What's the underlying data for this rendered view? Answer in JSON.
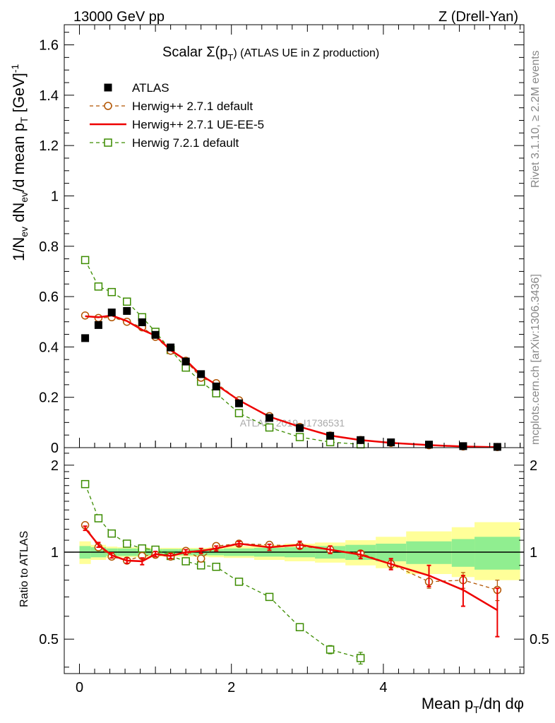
{
  "header": {
    "left": "13000 GeV pp",
    "right": "Z (Drell-Yan)"
  },
  "side": {
    "rivet": "Rivet 3.1.10, ≥ 2.2M events",
    "mcplots": "mcplots.cern.ch [arXiv:1306.3436]"
  },
  "watermark": "ATLAS_2019_I1736531",
  "colors": {
    "data": "#000000",
    "herwigpp_default": "#b25400",
    "herwigpp_ueee5": "#ee0000",
    "herwig7": "#3c8c00",
    "band_inner": "#90ee90",
    "band_outer": "#ffff99"
  },
  "chart_data": [
    {
      "type": "scatter",
      "panel": "main",
      "title": "Scalar Σ(p_T) (ATLAS UE in Z production)",
      "title_parts": {
        "main": "Scalar Σ(p",
        "sub": "T",
        "suffix": ") (ATLAS UE in Z production)"
      },
      "xlabel": "Mean p_T/dη dφ",
      "xlabel_parts": {
        "pre": "Mean p",
        "sub": "T",
        "post": "/dη dφ"
      },
      "ylabel": "1/N_ev dN_ev/d mean p_T [GeV]^-1",
      "ylabel_parts": {
        "a": "1/N",
        "a_sub": "ev",
        "b": " dN",
        "b_sub": "ev",
        "c": "/d mean p",
        "c_sub": "T",
        "d": " [GeV]",
        "d_sup": "-1"
      },
      "xlim": [
        -0.2,
        5.85
      ],
      "ylim": [
        0,
        1.68
      ],
      "yticks": [
        0,
        0.2,
        0.4,
        0.6,
        0.8,
        1,
        1.2,
        1.4,
        1.6
      ],
      "ytick_labels": [
        "0",
        "0.2",
        "0.4",
        "0.6",
        "0.8",
        "1",
        "1.2",
        "1.4",
        "1.6"
      ],
      "legend": {
        "position": "top-left"
      },
      "series": [
        {
          "name": "ATLAS",
          "style": "data",
          "x": [
            0.075,
            0.25,
            0.425,
            0.625,
            0.825,
            1.0,
            1.2,
            1.4,
            1.6,
            1.8,
            2.1,
            2.5,
            2.9,
            3.3,
            3.7,
            4.1,
            4.6,
            5.05,
            5.5
          ],
          "values": [
            0.435,
            0.487,
            0.537,
            0.543,
            0.498,
            0.448,
            0.398,
            0.342,
            0.292,
            0.243,
            0.176,
            0.118,
            0.078,
            0.047,
            0.03,
            0.021,
            0.012,
            0.006,
            0.003
          ]
        },
        {
          "name": "Herwig++ 2.7.1 default",
          "style": "open-circle-dashed",
          "x": [
            0.075,
            0.25,
            0.425,
            0.625,
            0.825,
            1.0,
            1.2,
            1.4,
            1.6,
            1.8,
            2.1,
            2.5,
            2.9,
            3.3,
            3.7,
            4.1,
            4.6,
            5.05,
            5.5
          ],
          "values": [
            0.525,
            0.515,
            0.518,
            0.5,
            0.478,
            0.44,
            0.385,
            0.345,
            0.278,
            0.256,
            0.188,
            0.125,
            0.082,
            0.048,
            0.03,
            0.019,
            0.0095,
            0.0049,
            0.0023
          ]
        },
        {
          "name": "Herwig++ 2.7.1 UE-EE-5",
          "style": "solid-line",
          "x": [
            0.075,
            0.25,
            0.425,
            0.625,
            0.825,
            1.0,
            1.2,
            1.4,
            1.6,
            1.8,
            2.1,
            2.5,
            2.9,
            3.3,
            3.7,
            4.1,
            4.6,
            5.05,
            5.5
          ],
          "values": [
            0.522,
            0.518,
            0.525,
            0.503,
            0.468,
            0.445,
            0.387,
            0.348,
            0.288,
            0.25,
            0.188,
            0.123,
            0.083,
            0.048,
            0.03,
            0.019,
            0.01,
            0.0045,
            0.0019
          ]
        },
        {
          "name": "Herwig 7.2.1 default",
          "style": "open-square-dashed",
          "x": [
            0.075,
            0.25,
            0.425,
            0.625,
            0.825,
            1.0,
            1.2,
            1.4,
            1.6,
            1.8,
            2.1,
            2.5,
            2.9,
            3.3,
            3.7
          ],
          "values": [
            0.745,
            0.64,
            0.618,
            0.58,
            0.518,
            0.46,
            0.388,
            0.318,
            0.262,
            0.216,
            0.137,
            0.08,
            0.042,
            0.022,
            0.013
          ]
        }
      ]
    },
    {
      "type": "scatter",
      "panel": "ratio",
      "ylabel": "Ratio to ATLAS",
      "xlabel": "Mean p_T/dη dφ",
      "xlim": [
        -0.2,
        5.85
      ],
      "ylim": [
        0.38,
        2.3
      ],
      "yticks": [
        0.5,
        1,
        2
      ],
      "ytick_labels": [
        "0.5",
        "1",
        "2"
      ],
      "xticks": [
        0,
        2,
        4
      ],
      "xtick_labels": [
        "0",
        "2",
        "4"
      ],
      "band": {
        "edges": [
          0.0,
          0.15,
          0.35,
          0.5,
          0.75,
          0.9,
          1.1,
          1.3,
          1.5,
          1.7,
          1.9,
          2.3,
          2.7,
          3.1,
          3.5,
          3.9,
          4.3,
          4.9,
          5.2,
          5.8
        ],
        "inner_low": [
          0.95,
          0.96,
          0.97,
          0.97,
          0.97,
          0.975,
          0.975,
          0.975,
          0.975,
          0.975,
          0.97,
          0.965,
          0.96,
          0.95,
          0.94,
          0.93,
          0.91,
          0.89,
          0.87
        ],
        "inner_high": [
          1.05,
          1.04,
          1.03,
          1.03,
          1.03,
          1.025,
          1.025,
          1.025,
          1.025,
          1.025,
          1.03,
          1.035,
          1.04,
          1.05,
          1.06,
          1.07,
          1.09,
          1.11,
          1.13
        ],
        "outer_low": [
          0.91,
          0.94,
          0.955,
          0.96,
          0.96,
          0.965,
          0.965,
          0.965,
          0.965,
          0.96,
          0.955,
          0.94,
          0.93,
          0.92,
          0.9,
          0.88,
          0.84,
          0.82,
          0.8
        ],
        "outer_high": [
          1.09,
          1.06,
          1.045,
          1.04,
          1.04,
          1.035,
          1.035,
          1.035,
          1.035,
          1.04,
          1.05,
          1.06,
          1.07,
          1.08,
          1.1,
          1.13,
          1.18,
          1.22,
          1.27
        ]
      },
      "series": [
        {
          "name": "Herwig++ 2.7.1 default",
          "x": [
            0.075,
            0.25,
            0.425,
            0.625,
            0.825,
            1.0,
            1.2,
            1.4,
            1.6,
            1.8,
            2.1,
            2.5,
            2.9,
            3.3,
            3.7,
            4.1,
            4.6,
            5.05,
            5.5
          ],
          "values": [
            1.24,
            1.04,
            0.965,
            0.935,
            0.97,
            0.98,
            0.965,
            1.01,
            0.95,
            1.05,
            1.07,
            1.06,
            1.05,
            1.02,
            0.99,
            0.91,
            0.79,
            0.8,
            0.74
          ],
          "errors": [
            0,
            0,
            0,
            0,
            0,
            0,
            0,
            0,
            0,
            0,
            0,
            0.02,
            0.02,
            0.02,
            0.02,
            0.03,
            0.04,
            0.05,
            0.06
          ]
        },
        {
          "name": "Herwig++ 2.7.1 UE-EE-5",
          "x": [
            0.075,
            0.25,
            0.425,
            0.625,
            0.825,
            1.0,
            1.2,
            1.4,
            1.6,
            1.8,
            2.1,
            2.5,
            2.9,
            3.3,
            3.7,
            4.1,
            4.6,
            5.05,
            5.5
          ],
          "values": [
            1.21,
            1.06,
            0.975,
            0.935,
            0.93,
            0.985,
            0.97,
            1.0,
            1.01,
            1.03,
            1.07,
            1.04,
            1.06,
            1.02,
            0.98,
            0.91,
            0.83,
            0.74,
            0.63
          ],
          "errors": [
            0.02,
            0.02,
            0.02,
            0.02,
            0.025,
            0.02,
            0.02,
            0.02,
            0.02,
            0.02,
            0.02,
            0.025,
            0.03,
            0.03,
            0.03,
            0.04,
            0.07,
            0.09,
            0.12
          ]
        },
        {
          "name": "Herwig 7.2.1 default",
          "x": [
            0.075,
            0.25,
            0.425,
            0.625,
            0.825,
            1.0,
            1.2,
            1.4,
            1.6,
            1.8,
            2.1,
            2.5,
            2.9,
            3.3,
            3.7
          ],
          "values": [
            1.72,
            1.31,
            1.16,
            1.07,
            1.03,
            1.02,
            0.97,
            0.93,
            0.9,
            0.89,
            0.79,
            0.7,
            0.55,
            0.46,
            0.43
          ],
          "errors": [
            0,
            0,
            0,
            0,
            0,
            0,
            0,
            0,
            0,
            0,
            0,
            0,
            0.01,
            0.015,
            0.02
          ]
        }
      ]
    }
  ]
}
